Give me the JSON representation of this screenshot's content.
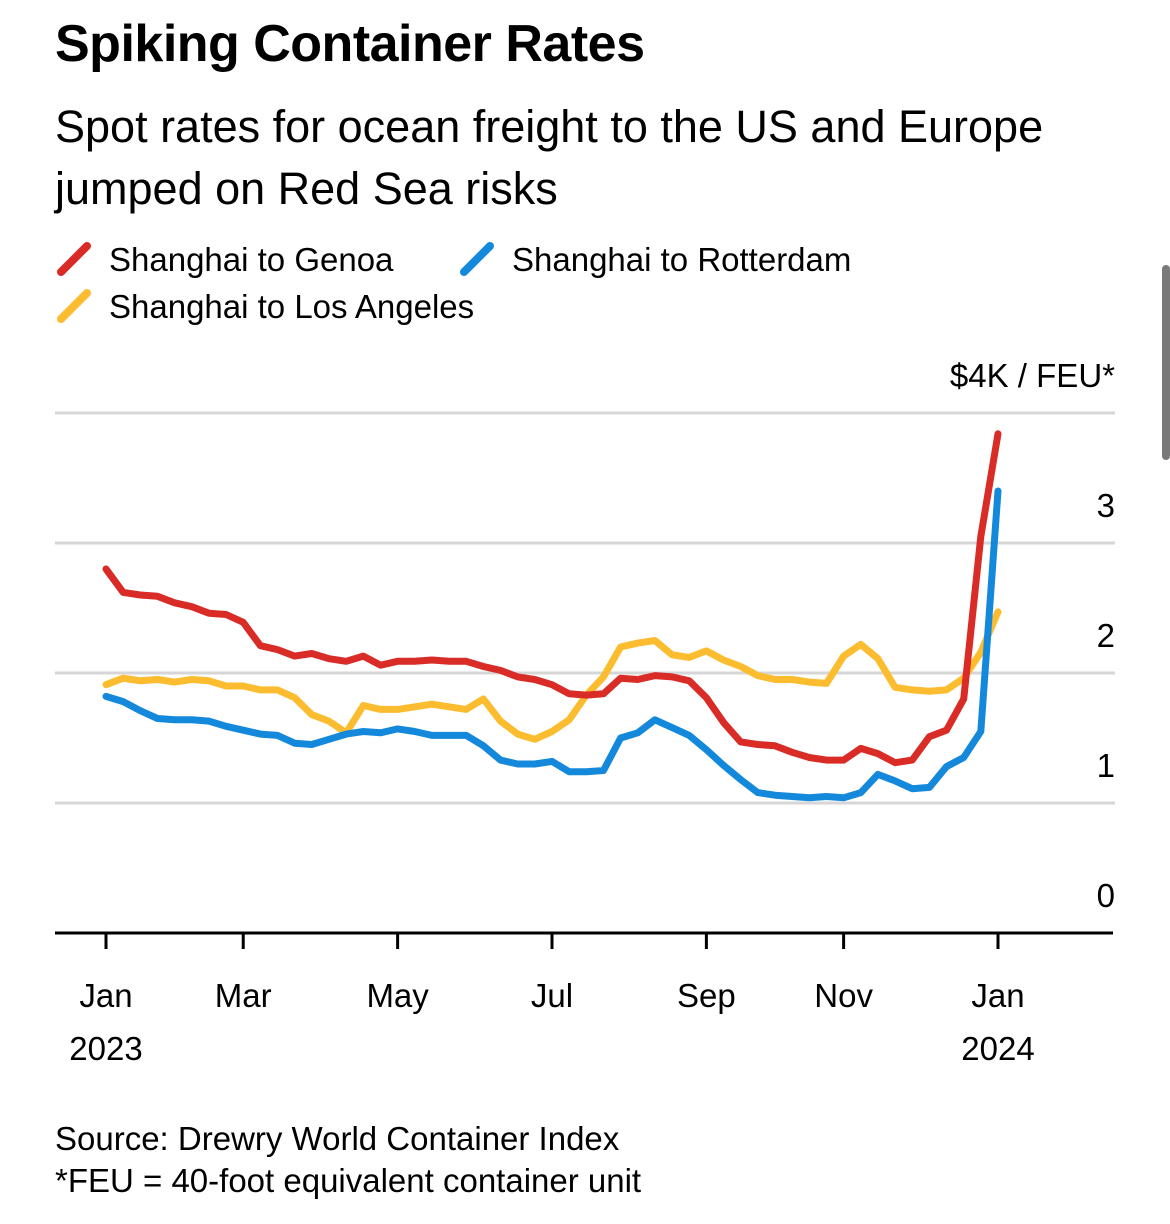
{
  "title": "Spiking Container Rates",
  "subtitle": "Spot rates for ocean freight to the US and Europe jumped on Red Sea risks",
  "legend": [
    {
      "name": "Shanghai to Genoa",
      "color": "#d92c27"
    },
    {
      "name": "Shanghai to Rotterdam",
      "color": "#1489dc"
    },
    {
      "name": "Shanghai to Los Angeles",
      "color": "#fbbd2f"
    }
  ],
  "footer": {
    "source": "Source: Drewry World Container Index",
    "note": "*FEU = 40-foot equivalent container unit"
  },
  "chart_data": {
    "type": "line",
    "title": "Spiking Container Rates",
    "ylabel": "$4K / FEU*",
    "ylim": [
      0,
      4
    ],
    "yticks": [
      "0",
      "1",
      "2",
      "3",
      "$4K / FEU*"
    ],
    "xticks": [
      {
        "label": "Jan",
        "sub": "2023",
        "week": 0
      },
      {
        "label": "Mar",
        "sub": "",
        "week": 8
      },
      {
        "label": "May",
        "sub": "",
        "week": 17
      },
      {
        "label": "Jul",
        "sub": "",
        "week": 26
      },
      {
        "label": "Sep",
        "sub": "",
        "week": 35
      },
      {
        "label": "Nov",
        "sub": "",
        "week": 43
      },
      {
        "label": "Jan",
        "sub": "2024",
        "week": 52
      }
    ],
    "grid": true,
    "legend_position": "top",
    "series": [
      {
        "name": "Shanghai to Genoa",
        "color": "#d92c27",
        "values": [
          2.8,
          2.62,
          2.6,
          2.59,
          2.54,
          2.51,
          2.46,
          2.45,
          2.39,
          2.21,
          2.18,
          2.13,
          2.15,
          2.11,
          2.09,
          2.13,
          2.06,
          2.09,
          2.09,
          2.1,
          2.09,
          2.09,
          2.05,
          2.02,
          1.97,
          1.95,
          1.91,
          1.84,
          1.83,
          1.84,
          1.96,
          1.95,
          1.98,
          1.97,
          1.94,
          1.81,
          1.62,
          1.47,
          1.45,
          1.44,
          1.39,
          1.35,
          1.33,
          1.33,
          1.42,
          1.38,
          1.31,
          1.33,
          1.51,
          1.56,
          1.8,
          3.05,
          3.84
        ]
      },
      {
        "name": "Shanghai to Rotterdam",
        "color": "#1489dc",
        "values": [
          1.82,
          1.78,
          1.71,
          1.65,
          1.64,
          1.64,
          1.63,
          1.59,
          1.56,
          1.53,
          1.52,
          1.46,
          1.45,
          1.49,
          1.53,
          1.55,
          1.54,
          1.57,
          1.55,
          1.52,
          1.52,
          1.52,
          1.44,
          1.33,
          1.3,
          1.3,
          1.32,
          1.24,
          1.24,
          1.25,
          1.5,
          1.54,
          1.64,
          1.58,
          1.52,
          1.41,
          1.29,
          1.18,
          1.08,
          1.06,
          1.05,
          1.04,
          1.05,
          1.04,
          1.08,
          1.22,
          1.17,
          1.11,
          1.12,
          1.28,
          1.35,
          1.55,
          3.4
        ]
      },
      {
        "name": "Shanghai to Los Angeles",
        "color": "#fbbd2f",
        "values": [
          1.91,
          1.96,
          1.94,
          1.95,
          1.93,
          1.95,
          1.94,
          1.9,
          1.9,
          1.87,
          1.87,
          1.81,
          1.68,
          1.63,
          1.54,
          1.75,
          1.72,
          1.72,
          1.74,
          1.76,
          1.74,
          1.72,
          1.8,
          1.63,
          1.53,
          1.49,
          1.55,
          1.64,
          1.83,
          1.97,
          2.2,
          2.23,
          2.25,
          2.14,
          2.12,
          2.17,
          2.1,
          2.05,
          1.98,
          1.95,
          1.95,
          1.93,
          1.92,
          2.13,
          2.22,
          2.11,
          1.89,
          1.87,
          1.86,
          1.87,
          1.96,
          2.16,
          2.47
        ]
      }
    ]
  }
}
